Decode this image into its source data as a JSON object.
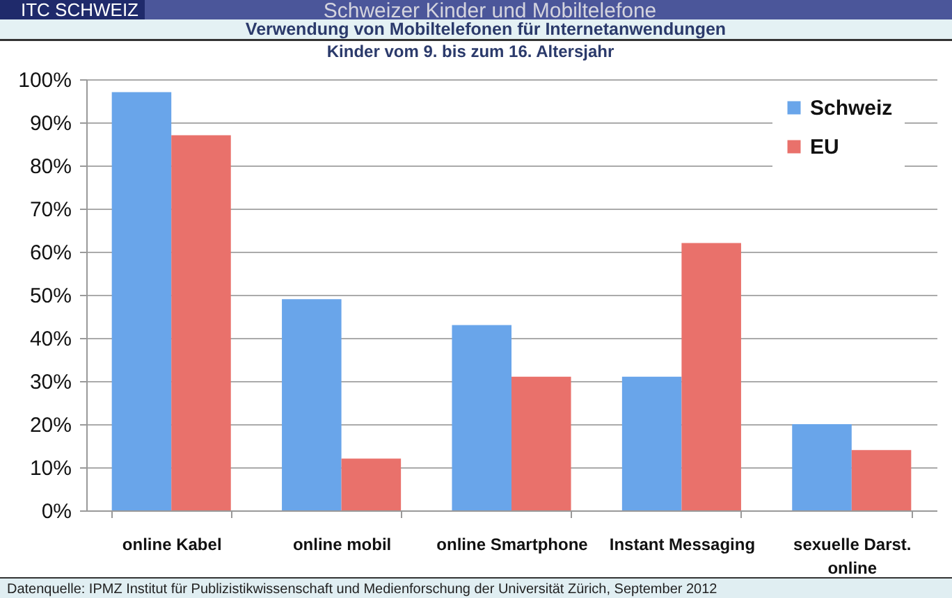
{
  "chart_data": {
    "type": "bar",
    "title": "Schweizer Kinder und  Mobiltelefone",
    "subtitle": "Verwendung von Mobiltelefonen für Internetanwendungen",
    "categories": [
      "online Kabel",
      "online mobil",
      "online Smartphone",
      "Instant Messaging",
      "sexuelle Darst. online"
    ],
    "series": [
      {
        "name": "Schweiz",
        "color": "#69a5ea",
        "values": [
          97,
          49,
          43,
          31,
          20
        ]
      },
      {
        "name": "EU",
        "color": "#e9716b",
        "values": [
          87,
          12,
          31,
          62,
          14
        ]
      }
    ],
    "ylim": [
      0,
      100
    ],
    "yticks": [
      {
        "value": 0,
        "label": "0%"
      },
      {
        "value": 10,
        "label": "10%"
      },
      {
        "value": 20,
        "label": "20%"
      },
      {
        "value": 30,
        "label": "30%"
      },
      {
        "value": 40,
        "label": "40%"
      },
      {
        "value": 50,
        "label": "50%"
      },
      {
        "value": 60,
        "label": "60%"
      },
      {
        "value": 70,
        "label": "70%"
      },
      {
        "value": 80,
        "label": "80%"
      },
      {
        "value": 90,
        "label": "90%"
      },
      {
        "value": 100,
        "label": "100%"
      }
    ],
    "grid": "y",
    "legend": "top right",
    "annotations": [
      "ITC SCHWEIZ",
      "Kinder vom 9. bis zum 16. Altersjahr",
      "Datenquelle: IPMZ  Institut für Publizistikwissenschaft und Medienforschung der Universität Zürich, September 2012"
    ]
  }
}
